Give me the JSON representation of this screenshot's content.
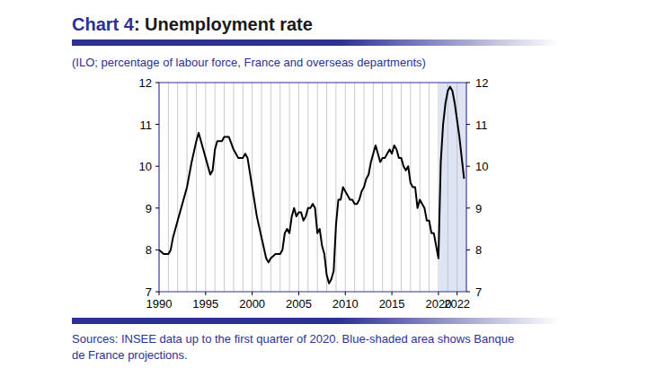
{
  "chart_data": {
    "type": "line",
    "title": "Chart 4: Unemployment rate",
    "subtitle": "(ILO; percentage of labour force, France and overseas departments)",
    "source": [
      "Sources: INSEE data up to the first quarter of 2020. Blue-shaded area shows Banque",
      "de France projections."
    ],
    "color": "#000000",
    "grid": true,
    "x": [
      1990,
      1990.5,
      1991,
      1991.25,
      1991.5,
      1992,
      1992.5,
      1993,
      1993.5,
      1994,
      1994.25,
      1994.5,
      1995,
      1995.5,
      1995.75,
      1996,
      1996.25,
      1996.75,
      1997,
      1997.5,
      1998,
      1998.5,
      1999,
      1999.25,
      1999.5,
      2000,
      2000.5,
      2001,
      2001.5,
      2001.75,
      2002,
      2002.5,
      2003,
      2003.25,
      2003.5,
      2003.75,
      2004,
      2004.25,
      2004.5,
      2004.75,
      2005,
      2005.25,
      2005.5,
      2005.75,
      2006,
      2006.25,
      2006.5,
      2006.75,
      2007,
      2007.25,
      2007.5,
      2007.75,
      2008,
      2008.25,
      2008.5,
      2008.75,
      2009,
      2009.25,
      2009.5,
      2009.75,
      2010,
      2010.25,
      2010.5,
      2010.75,
      2011,
      2011.25,
      2011.5,
      2011.75,
      2012,
      2012.25,
      2012.5,
      2012.75,
      2013,
      2013.25,
      2013.5,
      2013.75,
      2014,
      2014.25,
      2014.5,
      2014.75,
      2015,
      2015.25,
      2015.5,
      2015.75,
      2016,
      2016.25,
      2016.5,
      2016.75,
      2017,
      2017.25,
      2017.5,
      2017.75,
      2018,
      2018.25,
      2018.5,
      2018.75,
      2019,
      2019.25,
      2019.5,
      2019.75,
      2020,
      2020.25,
      2020.5,
      2020.75,
      2021,
      2021.25,
      2021.5,
      2021.75,
      2022,
      2022.25,
      2022.5,
      2022.75
    ],
    "values": [
      8.0,
      7.9,
      7.9,
      8.0,
      8.3,
      8.7,
      9.1,
      9.5,
      10.1,
      10.6,
      10.8,
      10.6,
      10.2,
      9.8,
      9.9,
      10.4,
      10.6,
      10.6,
      10.7,
      10.7,
      10.4,
      10.2,
      10.2,
      10.3,
      10.2,
      9.5,
      8.8,
      8.3,
      7.8,
      7.7,
      7.8,
      7.9,
      7.9,
      8.0,
      8.4,
      8.5,
      8.4,
      8.8,
      9.0,
      8.8,
      8.9,
      8.9,
      8.7,
      8.8,
      9.0,
      9.0,
      9.1,
      9.0,
      8.4,
      8.5,
      8.1,
      7.9,
      7.4,
      7.2,
      7.3,
      7.5,
      8.6,
      9.2,
      9.2,
      9.5,
      9.4,
      9.3,
      9.2,
      9.2,
      9.1,
      9.1,
      9.2,
      9.4,
      9.5,
      9.7,
      9.8,
      10.1,
      10.3,
      10.5,
      10.3,
      10.1,
      10.2,
      10.2,
      10.3,
      10.4,
      10.3,
      10.5,
      10.4,
      10.2,
      10.2,
      10.0,
      9.9,
      10.0,
      9.6,
      9.5,
      9.5,
      9.0,
      9.2,
      9.1,
      9.0,
      8.7,
      8.7,
      8.4,
      8.4,
      8.1,
      7.8,
      10.1,
      11.0,
      11.5,
      11.8,
      11.9,
      11.8,
      11.5,
      11.1,
      10.7,
      10.2,
      9.7
    ],
    "xlim": [
      1990,
      2023
    ],
    "xticks": [
      1990,
      1995,
      2000,
      2005,
      2010,
      2015,
      2020,
      2022
    ],
    "ylim": [
      7,
      12
    ],
    "yticks": [
      7,
      8,
      9,
      10,
      11,
      12
    ],
    "y2lim": [
      7,
      12
    ],
    "y2ticks": [
      7,
      8,
      9,
      10,
      11,
      12
    ],
    "projection_range": [
      2020.1,
      2023
    ]
  }
}
